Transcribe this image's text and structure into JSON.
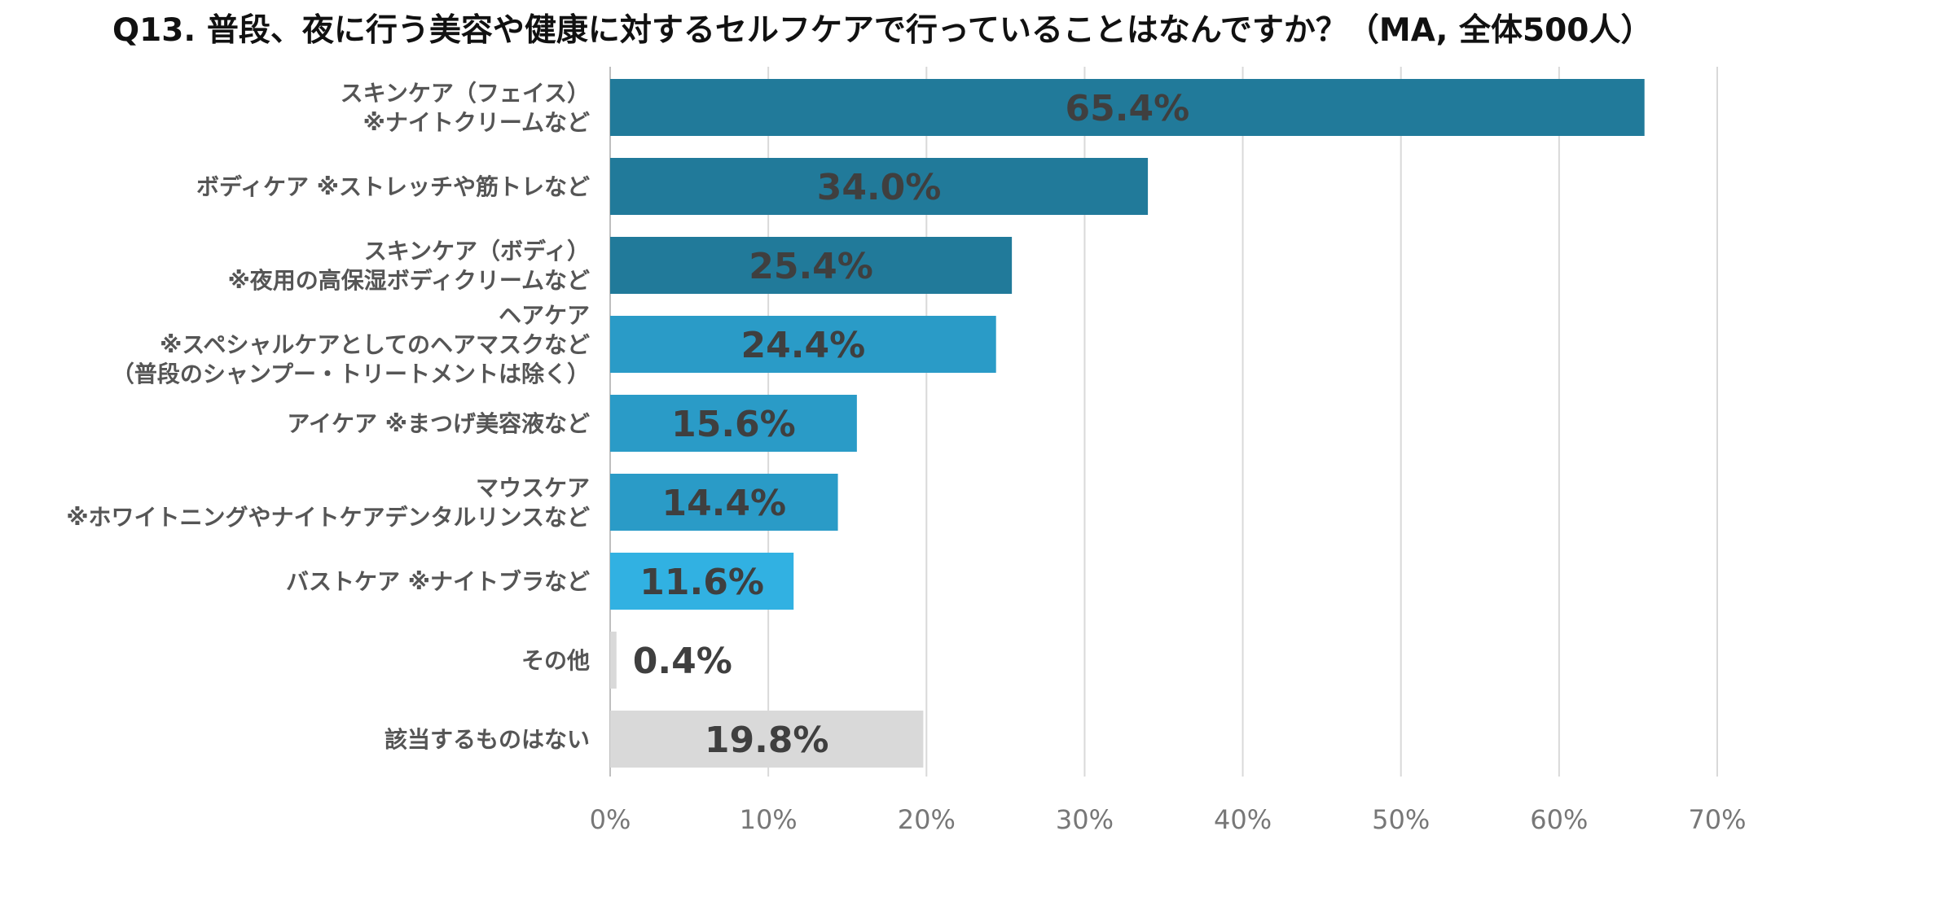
{
  "chart_data": {
    "type": "bar",
    "orientation": "horizontal",
    "title": "Q13. 普段、夜に行う美容や健康に対するセルフケアで行っていることはなんですか？（MA, 全体500人）",
    "categories": [
      [
        "スキンケア（フェイス）",
        "※ナイトクリームなど"
      ],
      [
        "ボディケア ※ストレッチや筋トレなど"
      ],
      [
        "スキンケア（ボディ）",
        "※夜用の高保湿ボディクリームなど"
      ],
      [
        "ヘアケア",
        "※スペシャルケアとしてのヘアマスクなど",
        "（普段のシャンプー・トリートメントは除く）"
      ],
      [
        "アイケア ※まつげ美容液など"
      ],
      [
        "マウスケア",
        "※ホワイトニングやナイトケアデンタルリンスなど"
      ],
      [
        "バストケア ※ナイトブラなど"
      ],
      [
        "その他"
      ],
      [
        "該当するものはない"
      ]
    ],
    "values": [
      65.4,
      34.0,
      25.4,
      24.4,
      15.6,
      14.4,
      11.6,
      0.4,
      19.8
    ],
    "data_labels": [
      "65.4%",
      "34.0%",
      "25.4%",
      "24.4%",
      "15.6%",
      "14.4%",
      "11.6%",
      "0.4%",
      "19.8%"
    ],
    "colors": [
      "#217a9a",
      "#217a9a",
      "#217a9a",
      "#2a9bc7",
      "#2a9bc7",
      "#2a9bc7",
      "#31b1e2",
      "#d9d9d9",
      "#d9d9d9"
    ],
    "xlim": [
      0,
      70
    ],
    "xticks": [
      0,
      10,
      20,
      30,
      40,
      50,
      60,
      70
    ],
    "xtick_labels": [
      "0%",
      "10%",
      "20%",
      "30%",
      "40%",
      "50%",
      "60%",
      "70%"
    ],
    "grid": true,
    "gridline_color": "#d9d9d9",
    "legend": "none"
  }
}
